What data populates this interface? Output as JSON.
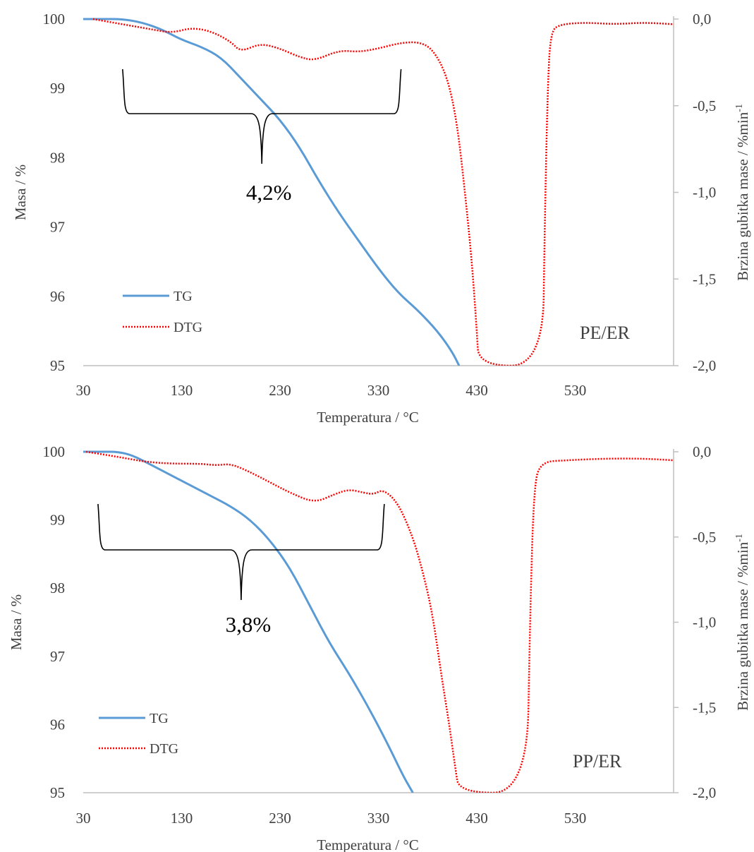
{
  "colors": {
    "tg": "#5b9bd5",
    "dtg": "#ff0000",
    "axis": "#bfbfbf",
    "text": "#404040"
  },
  "chart_data": [
    {
      "type": "line",
      "sample_label": "PE/ER",
      "annotation": "4,2%",
      "xlabel": "Temperatura  / °C",
      "ylabel": "Masa / %",
      "y2label": "Brzina  gubitka  mase  / %min",
      "y2label_sup": "-1",
      "xlim": [
        30,
        630
      ],
      "ylim": [
        95,
        100
      ],
      "y2lim": [
        -2.0,
        0.0
      ],
      "x_ticks": [
        "30",
        "130",
        "230",
        "330",
        "430",
        "530"
      ],
      "y_ticks": [
        "95",
        "96",
        "97",
        "98",
        "99",
        "100"
      ],
      "y2_ticks": [
        "-2,0",
        "-1,5",
        "-1,0",
        "-0,5",
        "0,0"
      ],
      "bracket_x": [
        70,
        353
      ],
      "series": [
        {
          "name": "TG",
          "axis": "left",
          "style": "solid",
          "x": [
            30,
            50,
            70,
            90,
            110,
            130,
            150,
            170,
            190,
            210,
            230,
            250,
            270,
            290,
            310,
            330,
            350,
            370,
            390,
            405,
            412
          ],
          "y": [
            100.0,
            100.0,
            100.0,
            99.95,
            99.85,
            99.7,
            99.6,
            99.45,
            99.15,
            98.85,
            98.55,
            98.15,
            97.65,
            97.2,
            96.8,
            96.4,
            96.05,
            95.8,
            95.5,
            95.2,
            95.0
          ]
        },
        {
          "name": "DTG",
          "axis": "right",
          "style": "dotted",
          "x": [
            40,
            60,
            80,
            100,
            120,
            140,
            160,
            180,
            190,
            210,
            230,
            250,
            265,
            290,
            310,
            330,
            350,
            370,
            385,
            400,
            410,
            418,
            425,
            430,
            432,
            497,
            499,
            502,
            505,
            515,
            540,
            570,
            600,
            630
          ],
          "y": [
            0.0,
            -0.02,
            -0.04,
            -0.06,
            -0.08,
            -0.05,
            -0.07,
            -0.13,
            -0.19,
            -0.14,
            -0.17,
            -0.22,
            -0.24,
            -0.18,
            -0.19,
            -0.17,
            -0.14,
            -0.13,
            -0.17,
            -0.33,
            -0.6,
            -1.0,
            -1.4,
            -1.8,
            -2.0,
            -2.0,
            -1.2,
            -0.4,
            -0.07,
            -0.03,
            -0.02,
            -0.03,
            -0.02,
            -0.03
          ]
        }
      ]
    },
    {
      "type": "line",
      "sample_label": "PP/ER",
      "annotation": "3,8%",
      "xlabel": "Temperatura  / °C",
      "ylabel": "Masa / %",
      "y2label": "Brzina  gubitka  mase  / %min",
      "y2label_sup": "-1",
      "xlim": [
        30,
        630
      ],
      "ylim": [
        95,
        100
      ],
      "y2lim": [
        -2.0,
        0.0
      ],
      "x_ticks": [
        "30",
        "130",
        "230",
        "330",
        "430",
        "530"
      ],
      "y_ticks": [
        "95",
        "96",
        "97",
        "98",
        "99",
        "100"
      ],
      "y2_ticks": [
        "-2,0",
        "-1,5",
        "-1,0",
        "-0,5",
        "0,0"
      ],
      "bracket_x": [
        45,
        336
      ],
      "series": [
        {
          "name": "TG",
          "axis": "left",
          "style": "solid",
          "x": [
            30,
            50,
            65,
            80,
            100,
            120,
            140,
            160,
            180,
            200,
            220,
            240,
            260,
            280,
            300,
            320,
            340,
            355,
            365
          ],
          "y": [
            100.0,
            100.0,
            100.0,
            99.95,
            99.8,
            99.65,
            99.5,
            99.35,
            99.2,
            99.0,
            98.7,
            98.3,
            97.75,
            97.2,
            96.75,
            96.25,
            95.7,
            95.25,
            95.0
          ]
        },
        {
          "name": "DTG",
          "axis": "right",
          "style": "dotted",
          "x": [
            33,
            55,
            75,
            95,
            120,
            150,
            165,
            180,
            200,
            220,
            240,
            265,
            285,
            300,
            315,
            325,
            335,
            350,
            365,
            375,
            385,
            395,
            402,
            408,
            412,
            481,
            484,
            488,
            495,
            520,
            560,
            600,
            630
          ],
          "y": [
            0.0,
            -0.02,
            -0.04,
            -0.06,
            -0.07,
            -0.07,
            -0.08,
            -0.07,
            -0.12,
            -0.18,
            -0.24,
            -0.3,
            -0.25,
            -0.22,
            -0.24,
            -0.25,
            -0.22,
            -0.3,
            -0.5,
            -0.7,
            -0.95,
            -1.35,
            -1.6,
            -1.85,
            -2.0,
            -2.0,
            -1.0,
            -0.2,
            -0.06,
            -0.05,
            -0.04,
            -0.04,
            -0.05
          ]
        }
      ]
    }
  ]
}
